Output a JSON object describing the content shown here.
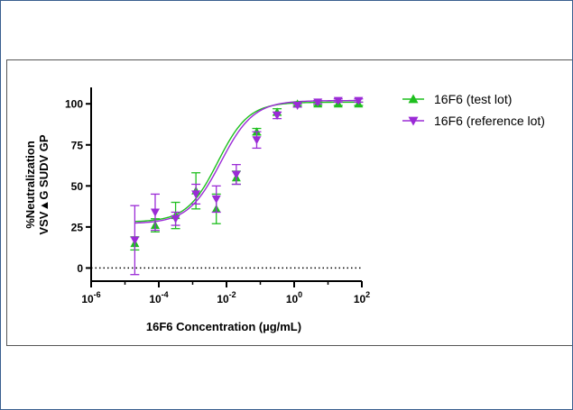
{
  "chart_data": {
    "type": "scatter",
    "xlabel": "16F6 Concentration (µg/mL)",
    "ylabel_line1": "%Neutralization",
    "ylabel_line2": "VSV▲G SUDV GP",
    "x_scale": "log10",
    "xlim": [
      1e-06,
      100
    ],
    "ylim": [
      -8,
      110
    ],
    "x_ticks": [
      {
        "base": "10",
        "exp": "-6",
        "value": 1e-06
      },
      {
        "base": "10",
        "exp": "-4",
        "value": 0.0001
      },
      {
        "base": "10",
        "exp": "-2",
        "value": 0.01
      },
      {
        "base": "10",
        "exp": "0",
        "value": 1
      },
      {
        "base": "10",
        "exp": "2",
        "value": 100
      }
    ],
    "y_ticks": [
      0,
      25,
      50,
      75,
      100
    ],
    "zero_line": "dotted",
    "grid": false,
    "legend_position": "right",
    "series": [
      {
        "name": "16F6 (test lot)",
        "color": "#1fbf1f",
        "marker": "triangle-up",
        "points": [
          {
            "x": 1.95e-05,
            "y": 15,
            "err": 4
          },
          {
            "x": 7.81e-05,
            "y": 26,
            "err": 4
          },
          {
            "x": 0.000313,
            "y": 32,
            "err": 8
          },
          {
            "x": 0.00125,
            "y": 47,
            "err": 11
          },
          {
            "x": 0.005,
            "y": 36,
            "err": 9
          },
          {
            "x": 0.0195,
            "y": 55,
            "err": 4
          },
          {
            "x": 0.0781,
            "y": 83,
            "err": 2
          },
          {
            "x": 0.313,
            "y": 95,
            "err": 2
          },
          {
            "x": 1.25,
            "y": 100,
            "err": 1
          },
          {
            "x": 5,
            "y": 100,
            "err": 1
          },
          {
            "x": 20,
            "y": 100,
            "err": 1
          },
          {
            "x": 80,
            "y": 100,
            "err": 1
          }
        ],
        "fit": {
          "bottom": 28,
          "top": 101,
          "ec50": 0.0055,
          "hill": 0.95
        }
      },
      {
        "name": "16F6 (reference lot)",
        "color": "#9b2bd6",
        "marker": "triangle-down",
        "points": [
          {
            "x": 1.95e-05,
            "y": 17,
            "err": 21
          },
          {
            "x": 7.81e-05,
            "y": 34,
            "err": 11
          },
          {
            "x": 0.000313,
            "y": 30,
            "err": 4
          },
          {
            "x": 0.00125,
            "y": 45,
            "err": 6
          },
          {
            "x": 0.005,
            "y": 42,
            "err": 8
          },
          {
            "x": 0.0195,
            "y": 57,
            "err": 6
          },
          {
            "x": 0.0781,
            "y": 78,
            "err": 5
          },
          {
            "x": 0.313,
            "y": 93,
            "err": 2
          },
          {
            "x": 1.25,
            "y": 99,
            "err": 1
          },
          {
            "x": 5,
            "y": 101,
            "err": 1
          },
          {
            "x": 20,
            "y": 102,
            "err": 1
          },
          {
            "x": 80,
            "y": 102,
            "err": 1
          }
        ],
        "fit": {
          "bottom": 27,
          "top": 102,
          "ec50": 0.0068,
          "hill": 0.9
        }
      }
    ]
  }
}
